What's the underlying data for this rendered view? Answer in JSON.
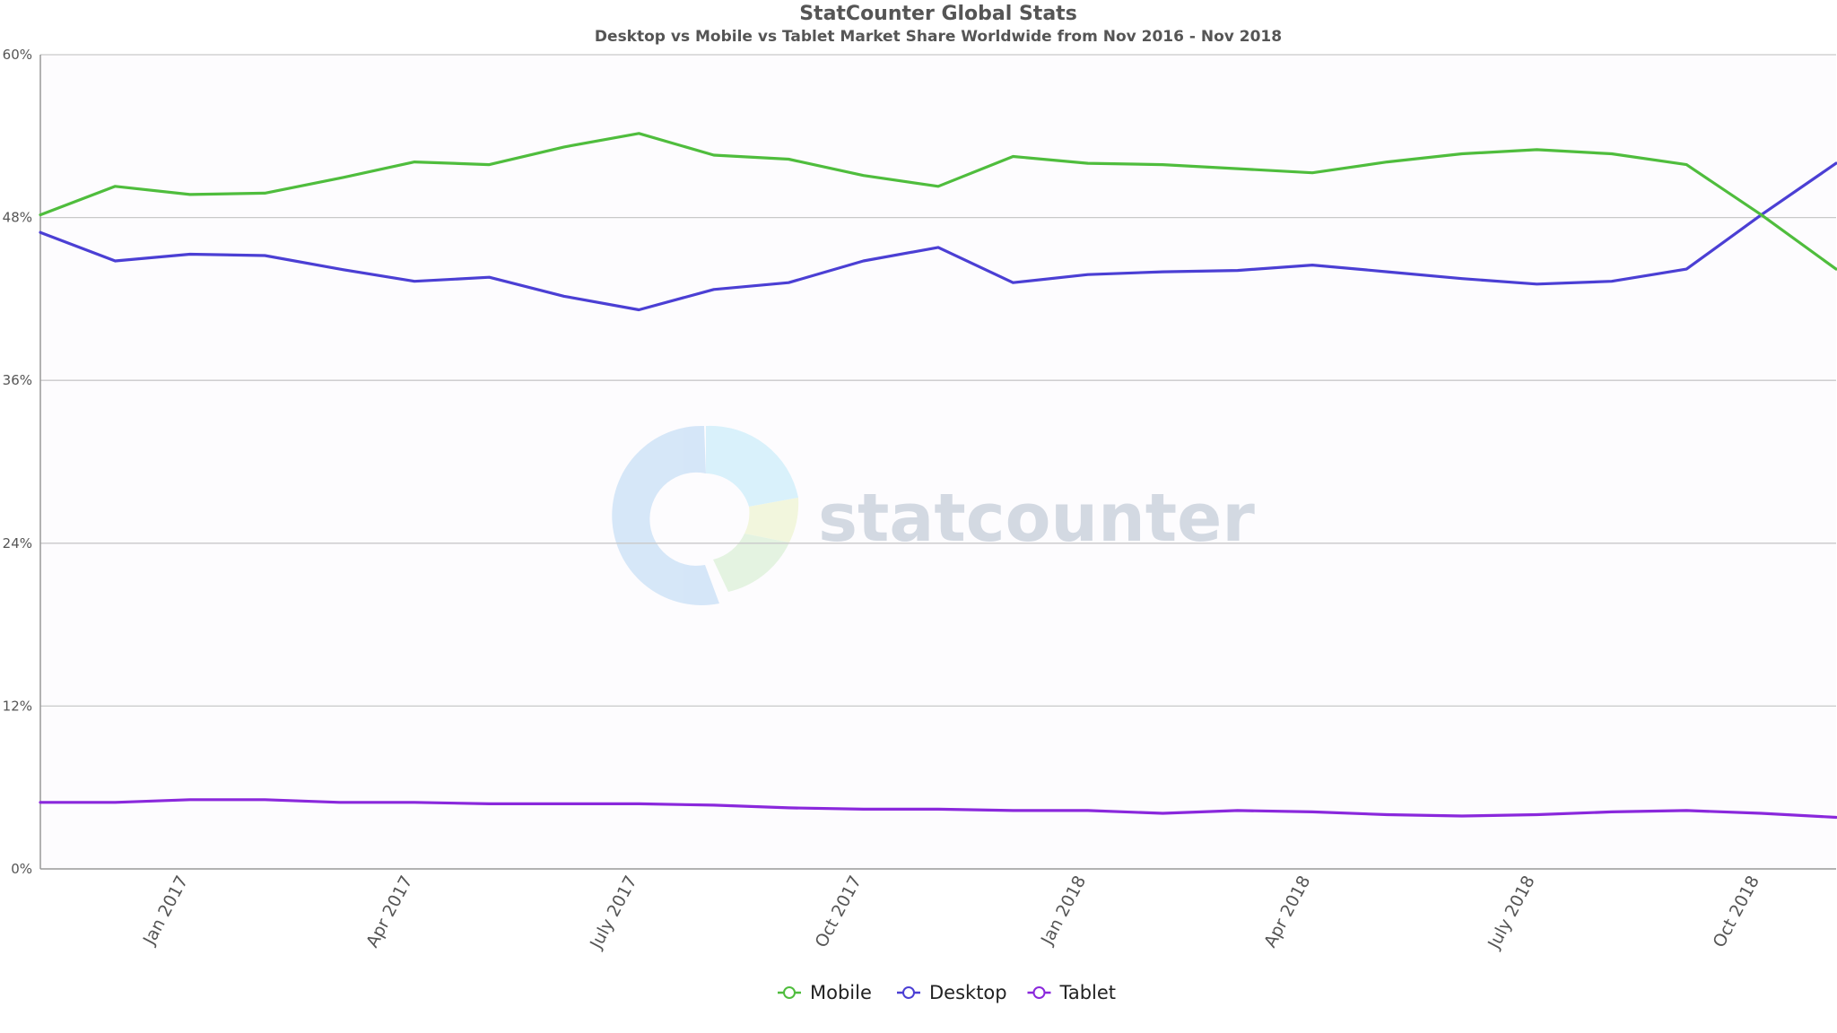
{
  "chart_data": {
    "type": "line",
    "title": "StatCounter Global Stats",
    "subtitle": "Desktop vs Mobile vs Tablet Market Share Worldwide from Nov 2016 - Nov 2018",
    "xlabel": "",
    "ylabel": "",
    "ylim": [
      0,
      60
    ],
    "y_ticks": [
      "0%",
      "12%",
      "24%",
      "36%",
      "48%",
      "60%"
    ],
    "x_tick_labels": [
      "Jan 2017",
      "Apr 2017",
      "July 2017",
      "Oct 2017",
      "Jan 2018",
      "Apr 2018",
      "July 2018",
      "Oct 2018"
    ],
    "x": [
      "Nov 2016",
      "Dec 2016",
      "Jan 2017",
      "Feb 2017",
      "Mar 2017",
      "Apr 2017",
      "May 2017",
      "June 2017",
      "July 2017",
      "Aug 2017",
      "Sept 2017",
      "Oct 2017",
      "Nov 2017",
      "Dec 2017",
      "Jan 2018",
      "Feb 2018",
      "Mar 2018",
      "Apr 2018",
      "May 2018",
      "June 2018",
      "July 2018",
      "Aug 2018",
      "Sept 2018",
      "Oct 2018",
      "Nov 2018"
    ],
    "grid": "horizontal",
    "legend_position": "bottom-center",
    "series": [
      {
        "name": "Mobile",
        "color": "#4fbd3d",
        "values": [
          48.2,
          50.3,
          49.7,
          49.8,
          50.9,
          52.1,
          51.9,
          53.2,
          54.2,
          52.6,
          52.3,
          51.1,
          50.3,
          52.5,
          52.0,
          51.9,
          51.6,
          51.3,
          52.1,
          52.7,
          53.0,
          52.7,
          51.9,
          48.2,
          44.2
        ]
      },
      {
        "name": "Desktop",
        "color": "#4b3fd4",
        "values": [
          46.9,
          44.8,
          45.3,
          45.2,
          44.2,
          43.3,
          43.6,
          42.2,
          41.2,
          42.7,
          43.2,
          44.8,
          45.8,
          43.2,
          43.8,
          44.0,
          44.1,
          44.5,
          44.0,
          43.5,
          43.1,
          43.3,
          44.2,
          48.2,
          52.0
        ]
      },
      {
        "name": "Tablet",
        "color": "#8a28dc",
        "values": [
          4.9,
          4.9,
          5.1,
          5.1,
          4.9,
          4.9,
          4.8,
          4.8,
          4.8,
          4.7,
          4.5,
          4.4,
          4.4,
          4.3,
          4.3,
          4.1,
          4.3,
          4.2,
          4.0,
          3.9,
          4.0,
          4.2,
          4.3,
          4.1,
          3.8
        ]
      }
    ]
  },
  "watermark": {
    "text": "statcounter"
  }
}
